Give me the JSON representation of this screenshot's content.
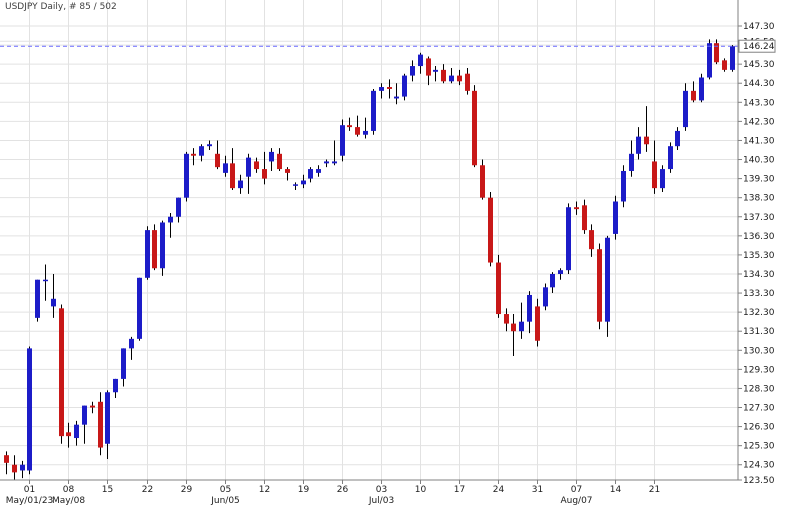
{
  "chart_data": {
    "type": "candlestick",
    "title": "USDJPY  Daily, # 85 / 502",
    "ylim": [
      123.5,
      147.3
    ],
    "y_ticks": [
      "123.50",
      "124.30",
      "125.30",
      "126.30",
      "127.30",
      "128.30",
      "129.30",
      "130.30",
      "131.30",
      "132.30",
      "133.30",
      "134.30",
      "135.30",
      "136.30",
      "137.30",
      "138.30",
      "139.30",
      "140.30",
      "141.30",
      "142.30",
      "143.30",
      "144.30",
      "145.30",
      "146.30",
      "146.50",
      "147.30"
    ],
    "current_price": "146.24",
    "x_ticks": [
      "01",
      "08",
      "15",
      "22",
      "29",
      "05",
      "12",
      "19",
      "26",
      "03",
      "10",
      "17",
      "24",
      "31",
      "07",
      "14",
      "21"
    ],
    "x_month_labels": [
      "May/01/23",
      "May/08",
      "Jun/05",
      "Jul/03",
      "Aug/07"
    ],
    "grid": true,
    "colors": {
      "up": "#1c1cc8",
      "down": "#c81818",
      "grid": "#e2e2e2",
      "current_line": "#6a6aff"
    },
    "candles": [
      {
        "o": 124.8,
        "h": 125.0,
        "l": 123.8,
        "c": 124.4
      },
      {
        "o": 124.3,
        "h": 124.8,
        "l": 123.5,
        "c": 123.9
      },
      {
        "o": 124.0,
        "h": 124.5,
        "l": 123.6,
        "c": 124.3
      },
      {
        "o": 124.0,
        "h": 130.5,
        "l": 123.8,
        "c": 130.4
      },
      {
        "o": 132.0,
        "h": 134.0,
        "l": 131.8,
        "c": 134.0
      },
      {
        "o": 134.0,
        "h": 134.8,
        "l": 132.9,
        "c": 134.0
      },
      {
        "o": 132.6,
        "h": 134.3,
        "l": 132.0,
        "c": 133.0
      },
      {
        "o": 132.5,
        "h": 132.7,
        "l": 125.4,
        "c": 125.8
      },
      {
        "o": 126.0,
        "h": 126.5,
        "l": 125.2,
        "c": 125.8
      },
      {
        "o": 125.7,
        "h": 126.6,
        "l": 125.3,
        "c": 126.4
      },
      {
        "o": 126.4,
        "h": 127.4,
        "l": 125.4,
        "c": 127.4
      },
      {
        "o": 127.4,
        "h": 127.6,
        "l": 127.0,
        "c": 127.3
      },
      {
        "o": 127.6,
        "h": 128.1,
        "l": 124.8,
        "c": 125.2
      },
      {
        "o": 125.4,
        "h": 128.2,
        "l": 124.6,
        "c": 128.1
      },
      {
        "o": 128.1,
        "h": 128.8,
        "l": 127.8,
        "c": 128.8
      },
      {
        "o": 128.8,
        "h": 130.4,
        "l": 128.4,
        "c": 130.4
      },
      {
        "o": 130.4,
        "h": 131.0,
        "l": 129.8,
        "c": 130.9
      },
      {
        "o": 130.9,
        "h": 134.1,
        "l": 130.8,
        "c": 134.1
      },
      {
        "o": 134.1,
        "h": 136.8,
        "l": 134.0,
        "c": 136.6
      },
      {
        "o": 136.6,
        "h": 136.9,
        "l": 134.5,
        "c": 134.6
      },
      {
        "o": 134.6,
        "h": 137.1,
        "l": 134.2,
        "c": 137.0
      },
      {
        "o": 137.0,
        "h": 137.5,
        "l": 136.2,
        "c": 137.3
      },
      {
        "o": 137.3,
        "h": 138.3,
        "l": 137.0,
        "c": 138.3
      },
      {
        "o": 138.3,
        "h": 140.7,
        "l": 138.1,
        "c": 140.6
      },
      {
        "o": 140.6,
        "h": 140.9,
        "l": 140.0,
        "c": 140.5
      },
      {
        "o": 140.5,
        "h": 141.1,
        "l": 140.2,
        "c": 141.0
      },
      {
        "o": 141.0,
        "h": 141.3,
        "l": 140.8,
        "c": 141.1
      },
      {
        "o": 140.6,
        "h": 141.3,
        "l": 139.8,
        "c": 139.9
      },
      {
        "o": 139.6,
        "h": 140.5,
        "l": 139.4,
        "c": 140.1
      },
      {
        "o": 140.1,
        "h": 140.9,
        "l": 138.7,
        "c": 138.8
      },
      {
        "o": 138.8,
        "h": 139.5,
        "l": 138.5,
        "c": 139.2
      },
      {
        "o": 139.4,
        "h": 140.6,
        "l": 138.5,
        "c": 140.4
      },
      {
        "o": 140.2,
        "h": 140.4,
        "l": 139.6,
        "c": 139.8
      },
      {
        "o": 139.8,
        "h": 140.7,
        "l": 139.0,
        "c": 139.3
      },
      {
        "o": 140.2,
        "h": 140.9,
        "l": 139.7,
        "c": 140.7
      },
      {
        "o": 140.6,
        "h": 140.9,
        "l": 139.7,
        "c": 139.8
      },
      {
        "o": 139.8,
        "h": 139.9,
        "l": 139.2,
        "c": 139.6
      },
      {
        "o": 139.0,
        "h": 139.1,
        "l": 138.7,
        "c": 139.0
      },
      {
        "o": 139.0,
        "h": 139.5,
        "l": 138.8,
        "c": 139.2
      },
      {
        "o": 139.3,
        "h": 139.9,
        "l": 139.1,
        "c": 139.8
      },
      {
        "o": 139.6,
        "h": 140.0,
        "l": 139.4,
        "c": 139.8
      },
      {
        "o": 140.1,
        "h": 140.3,
        "l": 139.9,
        "c": 140.2
      },
      {
        "o": 140.1,
        "h": 141.3,
        "l": 140.0,
        "c": 140.2
      },
      {
        "o": 140.5,
        "h": 142.4,
        "l": 140.2,
        "c": 142.1
      },
      {
        "o": 142.1,
        "h": 142.5,
        "l": 141.8,
        "c": 142.0
      },
      {
        "o": 142.0,
        "h": 142.6,
        "l": 141.5,
        "c": 141.6
      },
      {
        "o": 141.6,
        "h": 142.5,
        "l": 141.4,
        "c": 141.8
      },
      {
        "o": 141.8,
        "h": 144.0,
        "l": 141.6,
        "c": 143.9
      },
      {
        "o": 143.9,
        "h": 144.3,
        "l": 143.5,
        "c": 144.1
      },
      {
        "o": 144.1,
        "h": 144.5,
        "l": 143.5,
        "c": 144.0
      },
      {
        "o": 143.5,
        "h": 144.3,
        "l": 143.2,
        "c": 143.6
      },
      {
        "o": 143.6,
        "h": 144.8,
        "l": 143.4,
        "c": 144.7
      },
      {
        "o": 144.7,
        "h": 145.5,
        "l": 144.4,
        "c": 145.2
      },
      {
        "o": 145.2,
        "h": 145.9,
        "l": 144.8,
        "c": 145.8
      },
      {
        "o": 145.6,
        "h": 145.7,
        "l": 144.2,
        "c": 144.7
      },
      {
        "o": 144.9,
        "h": 145.2,
        "l": 144.4,
        "c": 145.0
      },
      {
        "o": 145.0,
        "h": 145.3,
        "l": 144.3,
        "c": 144.4
      },
      {
        "o": 144.4,
        "h": 145.1,
        "l": 144.3,
        "c": 144.7
      },
      {
        "o": 144.7,
        "h": 145.0,
        "l": 144.2,
        "c": 144.4
      },
      {
        "o": 144.8,
        "h": 145.1,
        "l": 143.7,
        "c": 143.9
      },
      {
        "o": 143.9,
        "h": 144.2,
        "l": 139.9,
        "c": 140.0
      },
      {
        "o": 140.0,
        "h": 140.3,
        "l": 138.2,
        "c": 138.3
      },
      {
        "o": 138.3,
        "h": 138.6,
        "l": 134.7,
        "c": 134.9
      },
      {
        "o": 134.9,
        "h": 135.3,
        "l": 132.0,
        "c": 132.2
      },
      {
        "o": 132.2,
        "h": 132.5,
        "l": 131.3,
        "c": 131.7
      },
      {
        "o": 131.7,
        "h": 132.2,
        "l": 130.0,
        "c": 131.3
      },
      {
        "o": 131.3,
        "h": 132.8,
        "l": 130.9,
        "c": 131.8
      },
      {
        "o": 131.8,
        "h": 133.4,
        "l": 131.2,
        "c": 133.2
      },
      {
        "o": 132.6,
        "h": 133.0,
        "l": 130.5,
        "c": 130.8
      },
      {
        "o": 132.6,
        "h": 133.8,
        "l": 132.4,
        "c": 133.6
      },
      {
        "o": 133.6,
        "h": 134.4,
        "l": 133.3,
        "c": 134.3
      },
      {
        "o": 134.3,
        "h": 134.6,
        "l": 134.0,
        "c": 134.5
      },
      {
        "o": 134.5,
        "h": 138.0,
        "l": 134.3,
        "c": 137.8
      },
      {
        "o": 137.8,
        "h": 138.1,
        "l": 137.4,
        "c": 137.7
      },
      {
        "o": 137.9,
        "h": 138.2,
        "l": 136.4,
        "c": 136.6
      },
      {
        "o": 136.6,
        "h": 136.9,
        "l": 135.2,
        "c": 135.6
      },
      {
        "o": 135.6,
        "h": 135.9,
        "l": 131.4,
        "c": 131.8
      },
      {
        "o": 131.8,
        "h": 136.3,
        "l": 131.0,
        "c": 136.2
      },
      {
        "o": 136.4,
        "h": 138.4,
        "l": 136.1,
        "c": 138.1
      },
      {
        "o": 138.1,
        "h": 140.0,
        "l": 137.8,
        "c": 139.7
      },
      {
        "o": 139.7,
        "h": 141.3,
        "l": 139.4,
        "c": 140.6
      },
      {
        "o": 140.6,
        "h": 142.0,
        "l": 140.3,
        "c": 141.5
      },
      {
        "o": 141.5,
        "h": 143.1,
        "l": 140.7,
        "c": 141.1
      },
      {
        "o": 140.2,
        "h": 141.3,
        "l": 138.5,
        "c": 138.8
      },
      {
        "o": 138.8,
        "h": 140.0,
        "l": 138.6,
        "c": 139.8
      },
      {
        "o": 139.8,
        "h": 141.2,
        "l": 139.6,
        "c": 141.0
      },
      {
        "o": 141.0,
        "h": 142.0,
        "l": 140.8,
        "c": 141.8
      },
      {
        "o": 142.0,
        "h": 144.3,
        "l": 141.8,
        "c": 143.9
      },
      {
        "o": 143.9,
        "h": 144.4,
        "l": 143.3,
        "c": 143.4
      },
      {
        "o": 143.4,
        "h": 144.8,
        "l": 143.3,
        "c": 144.6
      },
      {
        "o": 144.6,
        "h": 146.6,
        "l": 144.5,
        "c": 146.4
      },
      {
        "o": 146.4,
        "h": 146.6,
        "l": 145.3,
        "c": 145.4
      },
      {
        "o": 145.5,
        "h": 145.6,
        "l": 144.9,
        "c": 145.0
      },
      {
        "o": 145.0,
        "h": 146.3,
        "l": 144.9,
        "c": 146.24
      }
    ]
  }
}
